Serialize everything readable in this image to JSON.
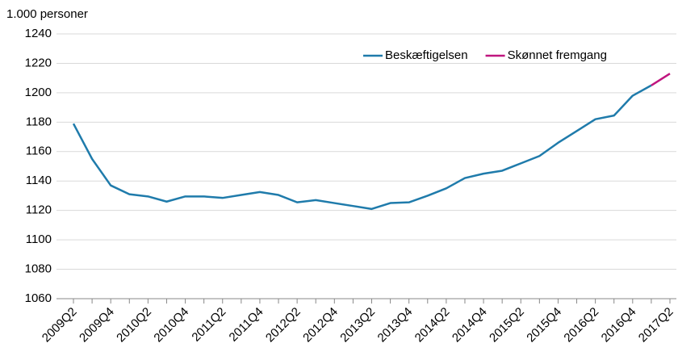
{
  "chart_data": {
    "type": "line",
    "ylabel": "1.000 personer",
    "categories": [
      "2009Q2",
      null,
      "2009Q4",
      null,
      "2010Q2",
      null,
      "2010Q4",
      null,
      "2011Q2",
      null,
      "2011Q4",
      null,
      "2012Q2",
      null,
      "2012Q4",
      null,
      "2013Q2",
      null,
      "2013Q4",
      null,
      "2014Q2",
      null,
      "2014Q4",
      null,
      "2015Q2",
      null,
      "2015Q4",
      null,
      "2016Q2",
      null,
      "2016Q4",
      null,
      "2017Q2"
    ],
    "series": [
      {
        "name": "Beskæftigelsen",
        "color": "#1f7bab",
        "values": [
          1179,
          1155,
          1137,
          1131,
          1129.5,
          1126,
          1129.5,
          1129.5,
          1128.5,
          1130.5,
          1132.5,
          1130.5,
          1125.5,
          1127,
          1125,
          1123,
          1121,
          1125,
          1125.5,
          1130,
          1135,
          1142,
          1145,
          1147,
          1152,
          1157,
          1166,
          1174,
          1182,
          1184.5,
          1198,
          1205,
          null
        ]
      },
      {
        "name": "Skønnet fremgang",
        "color": "#c0157f",
        "values": [
          null,
          null,
          null,
          null,
          null,
          null,
          null,
          null,
          null,
          null,
          null,
          null,
          null,
          null,
          null,
          null,
          null,
          null,
          null,
          null,
          null,
          null,
          null,
          null,
          null,
          null,
          null,
          null,
          null,
          null,
          null,
          1205,
          1213
        ]
      }
    ],
    "ylim": [
      1060,
      1240
    ],
    "yticks": [
      1060,
      1080,
      1100,
      1120,
      1140,
      1160,
      1180,
      1200,
      1220,
      1240
    ],
    "grid": true,
    "legend": "top-right"
  }
}
